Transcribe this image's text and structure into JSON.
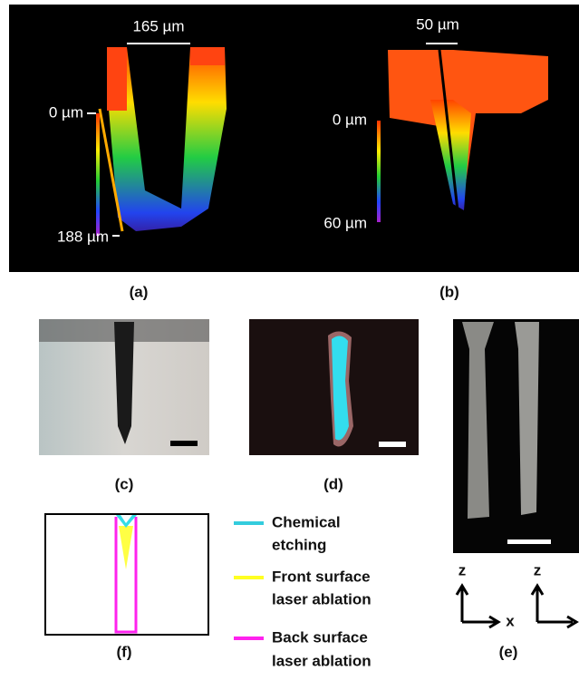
{
  "panel_a": {
    "width_label": "165 µm",
    "top_label": "0 µm",
    "bottom_label": "188 µm",
    "caption": "(a)"
  },
  "panel_b": {
    "width_label": "50 µm",
    "top_label": "0 µm",
    "bottom_label": "60 µm",
    "caption": "(b)"
  },
  "panel_c": {
    "caption": "(c)"
  },
  "panel_d": {
    "caption": "(d)"
  },
  "panel_e": {
    "caption": "(e)",
    "axes": [
      {
        "vertical": "z",
        "horizontal": "x"
      },
      {
        "vertical": "z"
      }
    ]
  },
  "panel_f": {
    "caption": "(f)",
    "legend": [
      {
        "label_lines": [
          "Chemical",
          "etching"
        ]
      },
      {
        "label_lines": [
          "Front surface",
          "laser ablation"
        ]
      },
      {
        "label_lines": [
          "Back surface",
          "laser ablation"
        ]
      }
    ]
  }
}
